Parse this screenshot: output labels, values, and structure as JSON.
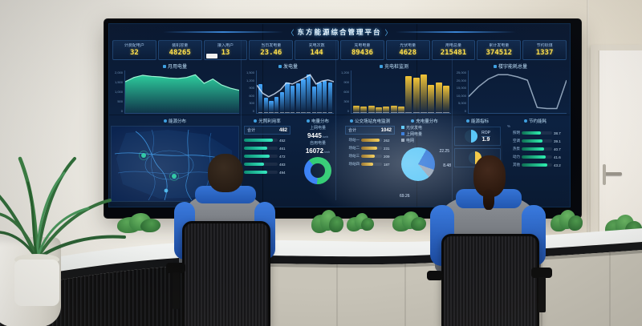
{
  "scene": {
    "room_colors": {
      "wall": "#ece7dc",
      "door": "#f5f1ea",
      "desk_top": "#f0f2f1",
      "desk_front_left": "#0d0d0e",
      "cabinet": "#c8c4b8",
      "uniform_blue": "#2b66c4",
      "uniform_grey": "#75797f"
    }
  },
  "dashboard": {
    "title": "东方能源综合管理平台",
    "palette": {
      "background": "#0a1830",
      "number_yellow": "#ffe14d",
      "teal": "#2fd6a3",
      "blue": "#45a8ff",
      "yellow": "#f2c437",
      "green": "#2ef0b0"
    },
    "kpis": [
      {
        "label": "计费配电户",
        "value": "32"
      },
      {
        "label": "装机容量",
        "value": "48265"
      },
      {
        "label": "接入用户",
        "value": "13"
      },
      {
        "label": "当日发电量",
        "value": "23.46"
      },
      {
        "label": "充电次数",
        "value": "144"
      },
      {
        "label": "充电电量",
        "value": "89436"
      },
      {
        "label": "光伏电量",
        "value": "4628"
      },
      {
        "label": "用电总量",
        "value": "215481"
      },
      {
        "label": "累计发电量",
        "value": "374512"
      },
      {
        "label": "节约标煤",
        "value": "1337"
      }
    ],
    "charts": {
      "month_usage": {
        "type": "area",
        "title": "月用电量",
        "color": "#2fd6a3",
        "values": [
          58,
          66,
          70,
          68,
          67,
          65,
          64,
          66,
          71,
          55,
          63,
          52,
          46,
          42
        ],
        "axis": [
          "2,000",
          "1,500",
          "1,000",
          "500",
          "0"
        ]
      },
      "generation": {
        "type": "bar+line",
        "title": "发电量",
        "color": "#45a8ff",
        "values": [
          52,
          28,
          22,
          30,
          38,
          55,
          50,
          54,
          62,
          70,
          48,
          56,
          58,
          55
        ],
        "line": [
          48,
          34,
          28,
          33,
          40,
          52,
          50,
          55,
          60,
          66,
          50,
          55,
          57,
          54
        ],
        "axis": [
          "1,500",
          "1,200",
          "900",
          "600",
          "300",
          "0"
        ]
      },
      "charging_monitor": {
        "type": "bar",
        "title": "充电桩监测",
        "color": "#f2c437",
        "values": [
          15,
          14,
          15,
          13,
          14,
          15,
          14,
          80,
          78,
          84,
          62,
          66,
          60
        ],
        "axis": [
          "1,200",
          "900",
          "600",
          "300",
          "0"
        ]
      },
      "building_energy": {
        "type": "grouped-bar+line",
        "title": "楼宇能耗总量",
        "series": [
          {
            "name": "能耗",
            "color": "#f2c437",
            "values": [
              45,
              62,
              88,
              82,
              74,
              66,
              58,
              6,
              6,
              6,
              78
            ]
          },
          {
            "name": "同比",
            "color": "#45a8ff",
            "values": [
              38,
              54,
              70,
              74,
              68,
              58,
              50,
              5,
              5,
              5,
              70
            ]
          }
        ],
        "line": [
          30,
          48,
          62,
          70,
          70,
          66,
          60,
          10,
          8,
          8,
          60
        ],
        "axis": [
          "25,000",
          "20,000",
          "15,000",
          "10,000",
          "5,000",
          "0"
        ]
      }
    },
    "sections": {
      "energy_map": {
        "title": "能源分布"
      },
      "light_utilization": {
        "title": "光照利用率",
        "total_label": "合计",
        "total": "482",
        "rows": [
          {
            "value": "452",
            "pct": 86
          },
          {
            "value": "461",
            "pct": 68
          },
          {
            "value": "472",
            "pct": 76
          },
          {
            "value": "483",
            "pct": 60
          },
          {
            "value": "494",
            "pct": 70
          }
        ]
      },
      "power_distribution": {
        "title": "电量分布",
        "stats": [
          {
            "label": "上网电量",
            "value": "9445",
            "unit": "kwh"
          },
          {
            "label": "自用电量",
            "value": "16072",
            "unit": "kwh"
          }
        ],
        "donut": {
          "colors": [
            "#2ecc71",
            "#3b82f6"
          ],
          "values": [
            62,
            38
          ]
        }
      },
      "bus_charging": {
        "title": "公交场站充电监测",
        "total_label": "合计",
        "total": "1042",
        "rows": [
          {
            "label": "场站一",
            "value": "262",
            "pct": 88
          },
          {
            "label": "场站二",
            "value": "231",
            "pct": 76
          },
          {
            "label": "场站三",
            "value": "209",
            "pct": 66
          },
          {
            "label": "场站四",
            "value": "187",
            "pct": 58
          }
        ]
      },
      "charging_distribution": {
        "title": "充电量分布",
        "legend": [
          {
            "label": "光伏发电",
            "color": "#4fc3f7"
          },
          {
            "label": "上网电量",
            "color": "#1e6bd6"
          },
          {
            "label": "电网",
            "color": "#8a9bb0"
          }
        ],
        "slices": [
          {
            "label": "69.26",
            "value": 69.26,
            "color": "#4fc3f7"
          },
          {
            "label": "22.25",
            "value": 22.25,
            "color": "#1e6bd6"
          },
          {
            "label": "8.48",
            "value": 8.48,
            "color": "#8a9bb0"
          }
        ]
      },
      "energy_indicator": {
        "title": "能源指标",
        "gauge": {
          "label": "ROP",
          "value": "1.9",
          "color": "#4fc3f7"
        },
        "gauge2": {
          "color": "#f2c437"
        }
      },
      "energy_saving": {
        "title": "节约能耗",
        "unit": "%",
        "rows": [
          {
            "label": "照明",
            "value": "38.7",
            "pct": 64
          },
          {
            "label": "空调",
            "value": "39.1",
            "pct": 68
          },
          {
            "label": "热泵",
            "value": "40.7",
            "pct": 73
          },
          {
            "label": "动力",
            "value": "41.6",
            "pct": 78
          },
          {
            "label": "其他",
            "value": "43.2",
            "pct": 84
          }
        ]
      }
    }
  }
}
